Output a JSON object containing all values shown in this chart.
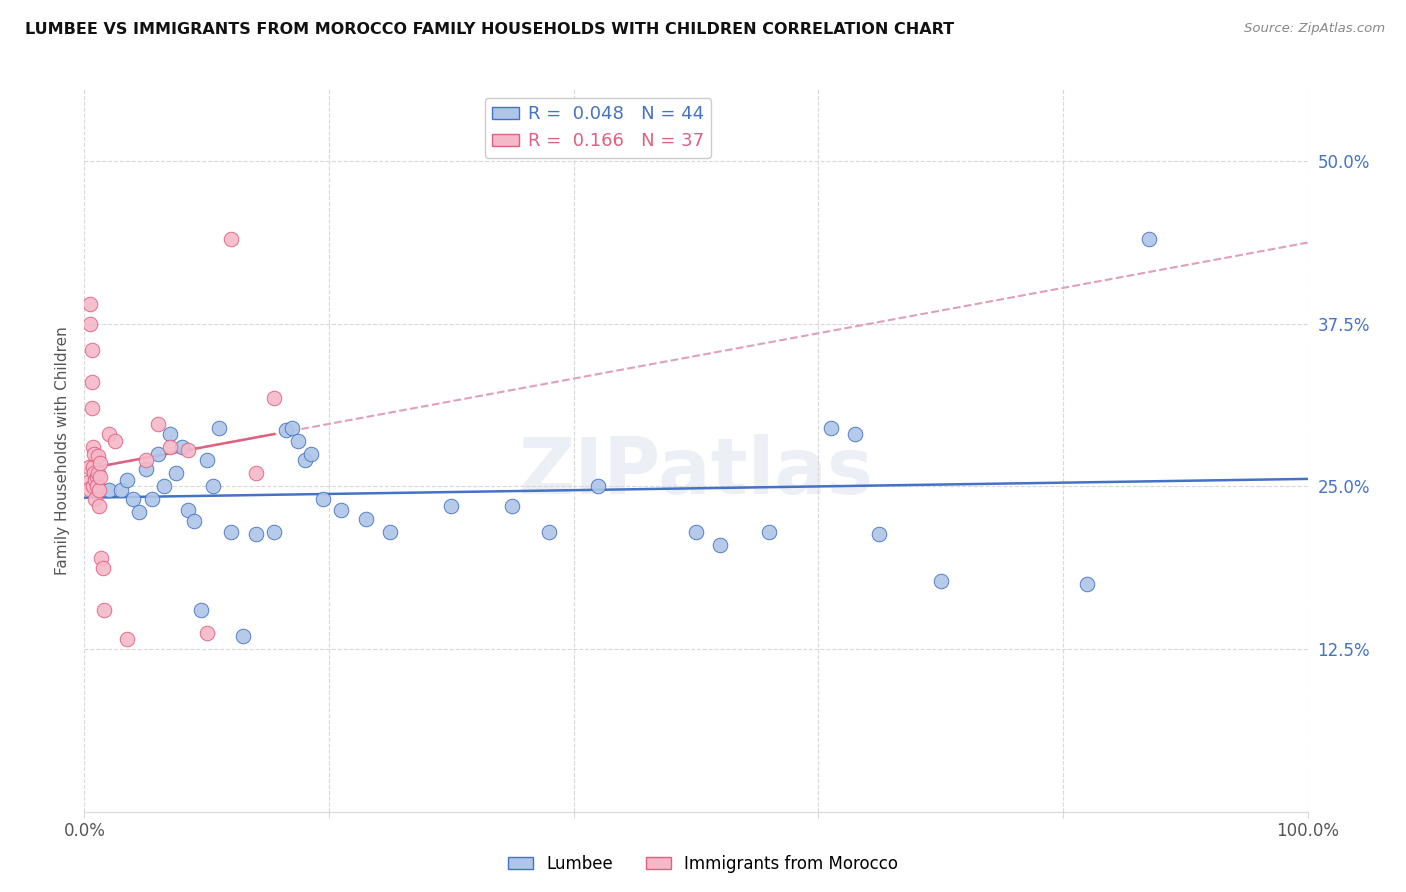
{
  "title": "LUMBEE VS IMMIGRANTS FROM MOROCCO FAMILY HOUSEHOLDS WITH CHILDREN CORRELATION CHART",
  "source": "Source: ZipAtlas.com",
  "ylabel": "Family Households with Children",
  "xlim": [
    0,
    1.0
  ],
  "ylim": [
    0,
    0.555
  ],
  "yticks": [
    0.125,
    0.25,
    0.375,
    0.5
  ],
  "ytick_labels": [
    "12.5%",
    "25.0%",
    "37.5%",
    "50.0%"
  ],
  "xticks": [
    0.0,
    0.2,
    0.4,
    0.6,
    0.8,
    1.0
  ],
  "xtick_labels": [
    "0.0%",
    "",
    "",
    "",
    "",
    "100.0%"
  ],
  "lumbee_R": 0.048,
  "lumbee_N": 44,
  "morocco_R": 0.166,
  "morocco_N": 37,
  "lumbee_color": "#aec6e8",
  "morocco_color": "#f5b8c8",
  "lumbee_line_color": "#4472c4",
  "morocco_line_color": "#e06080",
  "dashed_line_color": "#e0a0b8",
  "background_color": "#ffffff",
  "grid_color": "#d8d8d8",
  "lumbee_x": [
    0.02,
    0.03,
    0.035,
    0.04,
    0.045,
    0.05,
    0.055,
    0.06,
    0.065,
    0.07,
    0.075,
    0.08,
    0.085,
    0.09,
    0.095,
    0.1,
    0.105,
    0.11,
    0.12,
    0.13,
    0.14,
    0.155,
    0.165,
    0.17,
    0.175,
    0.18,
    0.185,
    0.195,
    0.21,
    0.23,
    0.25,
    0.3,
    0.35,
    0.38,
    0.42,
    0.5,
    0.52,
    0.56,
    0.61,
    0.63,
    0.65,
    0.7,
    0.82,
    0.87
  ],
  "lumbee_y": [
    0.247,
    0.247,
    0.255,
    0.24,
    0.23,
    0.263,
    0.24,
    0.275,
    0.25,
    0.29,
    0.26,
    0.28,
    0.232,
    0.223,
    0.155,
    0.27,
    0.25,
    0.295,
    0.215,
    0.135,
    0.213,
    0.215,
    0.293,
    0.295,
    0.285,
    0.27,
    0.275,
    0.24,
    0.232,
    0.225,
    0.215,
    0.235,
    0.235,
    0.215,
    0.25,
    0.215,
    0.205,
    0.215,
    0.295,
    0.29,
    0.213,
    0.177,
    0.175,
    0.44
  ],
  "morocco_x": [
    0.003,
    0.004,
    0.004,
    0.005,
    0.005,
    0.006,
    0.006,
    0.006,
    0.007,
    0.007,
    0.007,
    0.008,
    0.008,
    0.009,
    0.009,
    0.01,
    0.01,
    0.011,
    0.011,
    0.012,
    0.012,
    0.013,
    0.013,
    0.014,
    0.015,
    0.016,
    0.02,
    0.025,
    0.035,
    0.05,
    0.06,
    0.07,
    0.085,
    0.1,
    0.12,
    0.14,
    0.155
  ],
  "morocco_y": [
    0.253,
    0.265,
    0.248,
    0.39,
    0.375,
    0.355,
    0.33,
    0.31,
    0.28,
    0.265,
    0.25,
    0.26,
    0.275,
    0.255,
    0.24,
    0.257,
    0.25,
    0.26,
    0.273,
    0.247,
    0.235,
    0.257,
    0.268,
    0.195,
    0.187,
    0.155,
    0.29,
    0.285,
    0.133,
    0.27,
    0.298,
    0.28,
    0.278,
    0.137,
    0.44,
    0.26,
    0.318
  ]
}
